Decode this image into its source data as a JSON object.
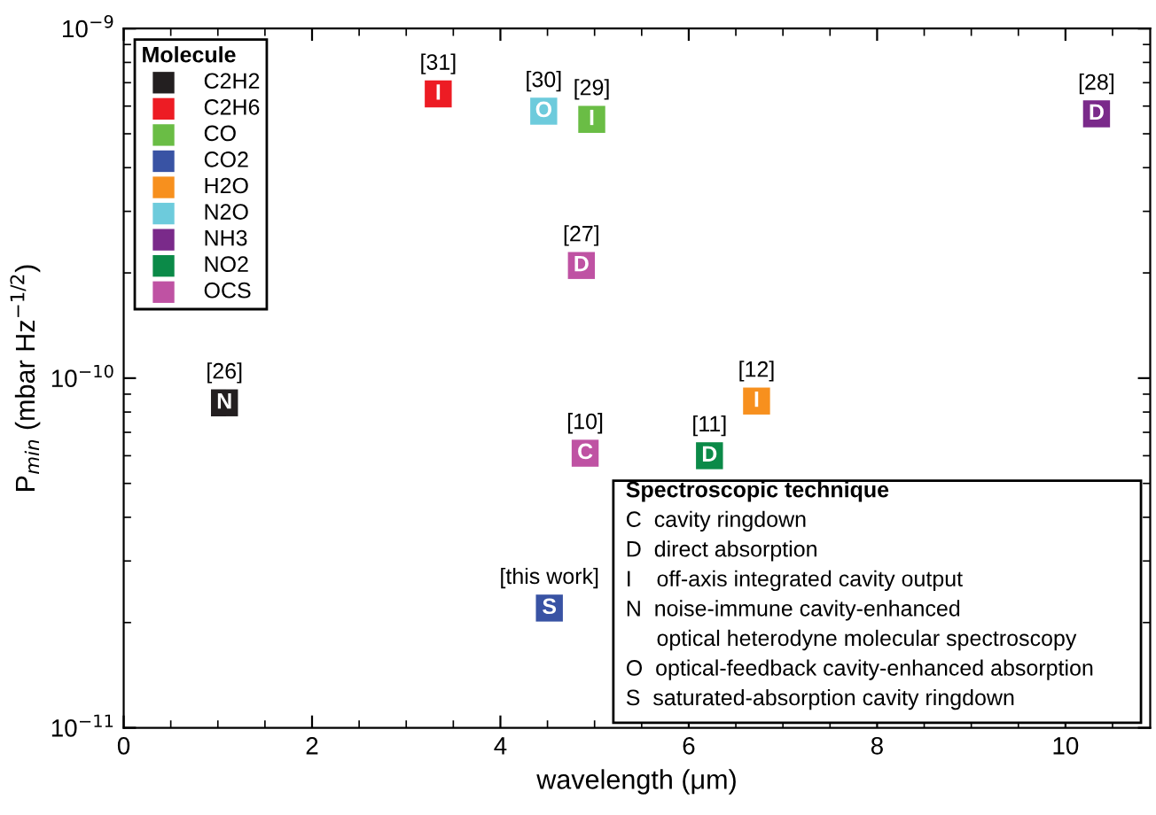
{
  "chart_data": {
    "type": "scatter",
    "xlabel": "wavelength (μm)",
    "ylabel": "P$_{min}$ (mbar Hz$^{−1/2}$)",
    "legend_title": "Molecule",
    "legend": "top left",
    "marker": "square",
    "log": "y",
    "xlim": [
      0,
      10.9
    ],
    "xticks": [
      0,
      2,
      4,
      6,
      8,
      10
    ],
    "ylim": [
      1e-11,
      1e-09
    ],
    "yticks": [
      {
        "value": 1e-11,
        "label": "10$^{−11}$"
      },
      {
        "value": 1e-10,
        "label": "10$^{−10}$"
      },
      {
        "value": 1e-09,
        "label": "10$^{−9}$"
      }
    ],
    "series": [
      {
        "name": "C2H2",
        "color": "#231f20",
        "x": [
          1.07
        ],
        "values": [
          8.5e-11
        ]
      },
      {
        "name": "C2H6",
        "color": "#ed1c24",
        "x": [
          3.34
        ],
        "values": [
          6.5e-10
        ]
      },
      {
        "name": "CO",
        "color": "#6abd45",
        "x": [
          4.97
        ],
        "values": [
          5.5e-10
        ]
      },
      {
        "name": "CO2",
        "color": "#3953a4",
        "x": [
          4.52
        ],
        "values": [
          2.2e-11
        ]
      },
      {
        "name": "H2O",
        "color": "#f7901e",
        "x": [
          6.72
        ],
        "values": [
          8.6e-11
        ]
      },
      {
        "name": "N2O",
        "color": "#6dcbdc",
        "x": [
          4.46
        ],
        "values": [
          5.8e-10
        ]
      },
      {
        "name": "NH3",
        "color": "#7a2a8a",
        "x": [
          10.33
        ],
        "values": [
          5.7e-10
        ]
      },
      {
        "name": "NO2",
        "color": "#0b8a48",
        "x": [
          6.22
        ],
        "values": [
          6e-11
        ]
      },
      {
        "name": "OCS",
        "color": "#bf52a3",
        "x": [
          4.86,
          4.9
        ],
        "values": [
          2.1e-10,
          6.1e-11
        ]
      }
    ],
    "annotations": [
      {
        "text": "N",
        "x": 1.07,
        "y": 8.5e-11
      },
      {
        "text": "I",
        "x": 3.34,
        "y": 6.5e-10
      },
      {
        "text": "I",
        "x": 4.97,
        "y": 5.5e-10
      },
      {
        "text": "S",
        "x": 4.52,
        "y": 2.2e-11
      },
      {
        "text": "I",
        "x": 6.72,
        "y": 8.6e-11
      },
      {
        "text": "O",
        "x": 4.46,
        "y": 5.8e-10
      },
      {
        "text": "D",
        "x": 10.33,
        "y": 5.7e-10
      },
      {
        "text": "D",
        "x": 6.22,
        "y": 6e-11
      },
      {
        "text": "D",
        "x": 4.86,
        "y": 2.1e-10
      },
      {
        "text": "C",
        "x": 4.9,
        "y": 6.1e-11
      },
      {
        "text": "[26]",
        "x": 1.07,
        "y": 8.5e-11
      },
      {
        "text": "[31]",
        "x": 3.34,
        "y": 6.5e-10
      },
      {
        "text": "[29]",
        "x": 4.97,
        "y": 5.5e-10
      },
      {
        "text": "[this work]",
        "x": 4.52,
        "y": 2.2e-11
      },
      {
        "text": "[12]",
        "x": 6.72,
        "y": 8.6e-11
      },
      {
        "text": "[30]",
        "x": 4.46,
        "y": 5.8e-10
      },
      {
        "text": "[28]",
        "x": 10.33,
        "y": 5.7e-10
      },
      {
        "text": "[11]",
        "x": 6.22,
        "y": 6e-11
      },
      {
        "text": "[27]",
        "x": 4.86,
        "y": 2.1e-10
      },
      {
        "text": "[10]",
        "x": 4.9,
        "y": 6.1e-11
      },
      "Spectroscopic technique",
      "C  cavity ringdown",
      "D  direct absorption",
      "I    off-axis integrated cavity output",
      "N  noise-immune cavity-enhanced",
      "     optical heterodyne molecular spectroscopy",
      "O  optical-feedback cavity-enhanced absorption",
      "S  saturated-absorption cavity ringdown"
    ]
  }
}
